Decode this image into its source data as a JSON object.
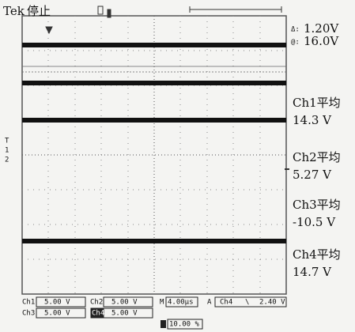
{
  "header": {
    "brand": "Tek",
    "status": "停止"
  },
  "cursor_readouts": [
    {
      "label": "Δ:",
      "value": "1.20V"
    },
    {
      "label": "@:",
      "value": "16.0V"
    }
  ],
  "measurements": [
    {
      "label": "Ch1平均",
      "value": "14.3 V"
    },
    {
      "label": "Ch2平均",
      "value": "5.27 V"
    },
    {
      "label": "Ch3平均",
      "value": "-10.5 V"
    },
    {
      "label": "Ch4平均",
      "value": "14.7 V"
    }
  ],
  "channel_markers": [
    "T",
    "1",
    "2"
  ],
  "settings": {
    "ch1": {
      "name": "Ch1",
      "scale": "5.00 V"
    },
    "ch2": {
      "name": "Ch2",
      "scale": "5.00 V"
    },
    "ch3": {
      "name": "Ch3",
      "scale": "5.00 V"
    },
    "ch4": {
      "name": "Ch4",
      "scale": "5.00 V"
    },
    "timebase": {
      "name": "M",
      "scale": "4.00µs"
    },
    "trigger": {
      "mode": "A",
      "source": "Ch4",
      "slope": "\\",
      "level": "2.40 V"
    },
    "position": "10.00 %"
  }
}
